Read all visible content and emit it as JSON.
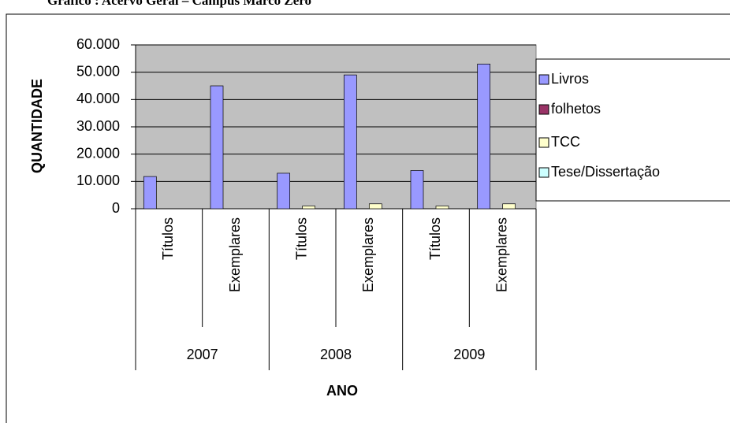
{
  "chart_data": {
    "type": "bar",
    "title": "Gráfico : Acervo Geral – Campus Marco Zero",
    "categories": [
      "Títulos",
      "Exemplares",
      "Títulos",
      "Exemplares",
      "Títulos",
      "Exemplares"
    ],
    "category_groups": [
      "2007",
      "2008",
      "2009"
    ],
    "series": [
      {
        "name": "Livros",
        "color": "#9999ff",
        "values": [
          11800,
          45000,
          13000,
          49000,
          14000,
          53000
        ]
      },
      {
        "name": "folhetos",
        "color": "#993366",
        "values": [
          0,
          0,
          0,
          0,
          0,
          0
        ]
      },
      {
        "name": "TCC",
        "color": "#ffffcc",
        "values": [
          0,
          0,
          1000,
          1800,
          1000,
          1800
        ]
      },
      {
        "name": "Tese/Dissertação",
        "color": "#ccffff",
        "values": [
          0,
          0,
          0,
          0,
          0,
          0
        ]
      }
    ],
    "ylim": [
      0,
      60000
    ],
    "yticks": [
      0,
      {
        "value": 10000,
        "label": "10.000"
      },
      {
        "value": 20000,
        "label": "20.000"
      },
      {
        "value": 30000,
        "label": "30.000"
      },
      {
        "value": 40000,
        "label": "40.000"
      },
      {
        "value": 50000,
        "label": "50.000"
      },
      {
        "value": 60000,
        "label": "60.000"
      }
    ],
    "ylabel": "QUANTIDADE",
    "xlabel": "ANO",
    "plot_background": "#c0c0c0",
    "legend": "right"
  }
}
